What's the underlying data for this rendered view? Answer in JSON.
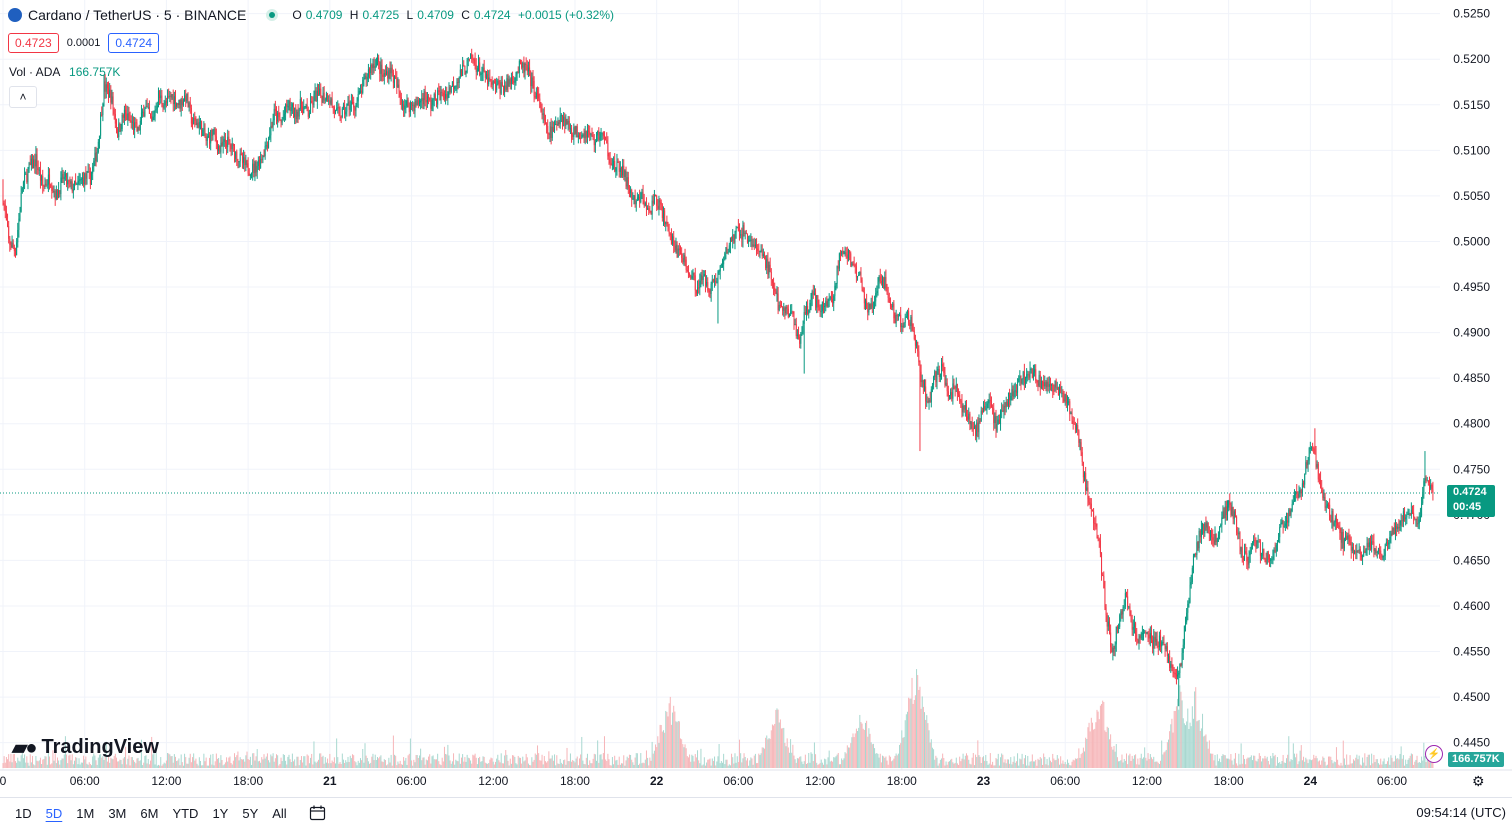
{
  "header": {
    "symbol": "Cardano / TetherUS · 5 · BINANCE",
    "open_label": "O",
    "open": "0.4709",
    "high_label": "H",
    "high": "0.4725",
    "low_label": "L",
    "low": "0.4709",
    "close_label": "C",
    "close": "0.4724",
    "change": "+0.0015 (+0.32%)"
  },
  "quote": {
    "sell": "0.4723",
    "spread": "0.0001",
    "buy": "0.4724"
  },
  "volume_legend": {
    "label": "Vol · ADA",
    "value": "166.757K"
  },
  "last_price": {
    "price": "0.4724",
    "countdown": "00:45"
  },
  "volume_badge": "166.757K",
  "branding": "TradingView",
  "ranges": [
    "1D",
    "5D",
    "1M",
    "3M",
    "6M",
    "YTD",
    "1Y",
    "5Y",
    "All"
  ],
  "active_range": "5D",
  "clock": "09:54:14 (UTC)",
  "colors": {
    "up": "#089981",
    "down": "#f23645",
    "vol_up": "#a8d8d0",
    "vol_down": "#f6b5b8",
    "grid": "#f0f3fa"
  },
  "chart_data": {
    "type": "candlestick",
    "title": "Cardano / TetherUS · 5 · BINANCE",
    "interval": "5m",
    "y_ticks": [
      "0.5250",
      "0.5200",
      "0.5150",
      "0.5100",
      "0.5050",
      "0.5000",
      "0.4950",
      "0.4900",
      "0.4850",
      "0.4800",
      "0.4750",
      "0.4700",
      "0.4650",
      "0.4600",
      "0.4550",
      "0.4500",
      "0.4450"
    ],
    "ylim": [
      0.442,
      0.5265
    ],
    "x_ticks": [
      "0",
      "06:00",
      "12:00",
      "18:00",
      "21",
      "06:00",
      "12:00",
      "18:00",
      "22",
      "06:00",
      "12:00",
      "18:00",
      "23",
      "06:00",
      "12:00",
      "18:00",
      "24",
      "06:00"
    ],
    "x_tick_hours": [
      0,
      6,
      12,
      18,
      24,
      30,
      36,
      42,
      48,
      54,
      60,
      66,
      72,
      78,
      84,
      90,
      96,
      102
    ],
    "xlim_hours": [
      0,
      105.3
    ],
    "price_path": [
      [
        0,
        0.506
      ],
      [
        0.5,
        0.5
      ],
      [
        1.0,
        0.499
      ],
      [
        1.5,
        0.506
      ],
      [
        2.0,
        0.508
      ],
      [
        2.5,
        0.509
      ],
      [
        3.0,
        0.506
      ],
      [
        3.5,
        0.507
      ],
      [
        4.0,
        0.505
      ],
      [
        4.5,
        0.507
      ],
      [
        5.0,
        0.506
      ],
      [
        5.5,
        0.506
      ],
      [
        6.0,
        0.507
      ],
      [
        6.5,
        0.507
      ],
      [
        7.0,
        0.51
      ],
      [
        7.5,
        0.517
      ],
      [
        8.0,
        0.516
      ],
      [
        8.5,
        0.512
      ],
      [
        9.0,
        0.514
      ],
      [
        9.5,
        0.513
      ],
      [
        10.0,
        0.512
      ],
      [
        10.5,
        0.515
      ],
      [
        11.0,
        0.513
      ],
      [
        11.5,
        0.516
      ],
      [
        12.0,
        0.515
      ],
      [
        12.5,
        0.516
      ],
      [
        13.0,
        0.515
      ],
      [
        13.5,
        0.516
      ],
      [
        14.0,
        0.513
      ],
      [
        14.5,
        0.513
      ],
      [
        15.0,
        0.511
      ],
      [
        15.5,
        0.512
      ],
      [
        16.0,
        0.51
      ],
      [
        16.5,
        0.511
      ],
      [
        17.0,
        0.51
      ],
      [
        17.5,
        0.509
      ],
      [
        18.0,
        0.508
      ],
      [
        18.5,
        0.508
      ],
      [
        19.0,
        0.509
      ],
      [
        19.5,
        0.511
      ],
      [
        20.0,
        0.514
      ],
      [
        20.5,
        0.513
      ],
      [
        21.0,
        0.515
      ],
      [
        21.5,
        0.514
      ],
      [
        22.0,
        0.515
      ],
      [
        22.5,
        0.514
      ],
      [
        23.0,
        0.516
      ],
      [
        23.5,
        0.516
      ],
      [
        24.0,
        0.516
      ],
      [
        24.5,
        0.514
      ],
      [
        25.0,
        0.514
      ],
      [
        25.5,
        0.515
      ],
      [
        26.0,
        0.515
      ],
      [
        26.5,
        0.517
      ],
      [
        27.0,
        0.519
      ],
      [
        27.5,
        0.52
      ],
      [
        28.0,
        0.518
      ],
      [
        28.5,
        0.519
      ],
      [
        29.0,
        0.517
      ],
      [
        29.5,
        0.515
      ],
      [
        30.0,
        0.515
      ],
      [
        30.5,
        0.515
      ],
      [
        31.0,
        0.516
      ],
      [
        31.5,
        0.515
      ],
      [
        32.0,
        0.516
      ],
      [
        32.5,
        0.516
      ],
      [
        33.0,
        0.517
      ],
      [
        33.5,
        0.518
      ],
      [
        34.0,
        0.519
      ],
      [
        34.5,
        0.52
      ],
      [
        35.0,
        0.519
      ],
      [
        35.5,
        0.518
      ],
      [
        36.0,
        0.517
      ],
      [
        36.5,
        0.517
      ],
      [
        37.0,
        0.517
      ],
      [
        37.5,
        0.518
      ],
      [
        38.0,
        0.519
      ],
      [
        38.5,
        0.519
      ],
      [
        39.0,
        0.517
      ],
      [
        39.5,
        0.515
      ],
      [
        40.0,
        0.512
      ],
      [
        40.5,
        0.512
      ],
      [
        41.0,
        0.514
      ],
      [
        41.5,
        0.513
      ],
      [
        42.0,
        0.512
      ],
      [
        42.5,
        0.512
      ],
      [
        43.0,
        0.512
      ],
      [
        43.5,
        0.511
      ],
      [
        44.0,
        0.512
      ],
      [
        44.5,
        0.51
      ],
      [
        45.0,
        0.508
      ],
      [
        45.5,
        0.508
      ],
      [
        46.0,
        0.506
      ],
      [
        46.5,
        0.504
      ],
      [
        47.0,
        0.505
      ],
      [
        47.5,
        0.503
      ],
      [
        48.0,
        0.505
      ],
      [
        48.5,
        0.503
      ],
      [
        49.0,
        0.501
      ],
      [
        49.5,
        0.499
      ],
      [
        50.0,
        0.498
      ],
      [
        50.5,
        0.497
      ],
      [
        51.0,
        0.495
      ],
      [
        51.5,
        0.496
      ],
      [
        52.0,
        0.495
      ],
      [
        52.5,
        0.496
      ],
      [
        53.0,
        0.498
      ],
      [
        53.5,
        0.5
      ],
      [
        54.0,
        0.501
      ],
      [
        54.5,
        0.501
      ],
      [
        55.0,
        0.5
      ],
      [
        55.5,
        0.499
      ],
      [
        56.0,
        0.498
      ],
      [
        56.5,
        0.496
      ],
      [
        57.0,
        0.493
      ],
      [
        57.5,
        0.492
      ],
      [
        58.0,
        0.493
      ],
      [
        58.5,
        0.489
      ],
      [
        59.0,
        0.492
      ],
      [
        59.5,
        0.494
      ],
      [
        60.0,
        0.493
      ],
      [
        60.5,
        0.493
      ],
      [
        61.0,
        0.494
      ],
      [
        61.5,
        0.498
      ],
      [
        62.0,
        0.499
      ],
      [
        62.5,
        0.497
      ],
      [
        63.0,
        0.496
      ],
      [
        63.5,
        0.493
      ],
      [
        64.0,
        0.493
      ],
      [
        64.5,
        0.496
      ],
      [
        65.0,
        0.495
      ],
      [
        65.5,
        0.492
      ],
      [
        66.0,
        0.491
      ],
      [
        66.5,
        0.492
      ],
      [
        67.0,
        0.49
      ],
      [
        67.5,
        0.485
      ],
      [
        68.0,
        0.482
      ],
      [
        68.5,
        0.485
      ],
      [
        69.0,
        0.486
      ],
      [
        69.5,
        0.483
      ],
      [
        70.0,
        0.484
      ],
      [
        70.5,
        0.482
      ],
      [
        71.0,
        0.481
      ],
      [
        71.5,
        0.479
      ],
      [
        72.0,
        0.481
      ],
      [
        72.5,
        0.482
      ],
      [
        73.0,
        0.48
      ],
      [
        73.5,
        0.481
      ],
      [
        74.0,
        0.483
      ],
      [
        74.5,
        0.484
      ],
      [
        75.0,
        0.485
      ],
      [
        75.5,
        0.486
      ],
      [
        76.0,
        0.485
      ],
      [
        76.5,
        0.484
      ],
      [
        77.0,
        0.484
      ],
      [
        77.5,
        0.484
      ],
      [
        78.0,
        0.483
      ],
      [
        78.5,
        0.481
      ],
      [
        79.0,
        0.479
      ],
      [
        79.5,
        0.474
      ],
      [
        80.0,
        0.47
      ],
      [
        80.5,
        0.468
      ],
      [
        81.0,
        0.46
      ],
      [
        81.5,
        0.455
      ],
      [
        82.0,
        0.458
      ],
      [
        82.5,
        0.461
      ],
      [
        83.0,
        0.458
      ],
      [
        83.5,
        0.456
      ],
      [
        84.0,
        0.457
      ],
      [
        84.5,
        0.456
      ],
      [
        85.0,
        0.456
      ],
      [
        85.5,
        0.455
      ],
      [
        86.0,
        0.452
      ],
      [
        86.5,
        0.453
      ],
      [
        87.0,
        0.459
      ],
      [
        87.5,
        0.465
      ],
      [
        88.0,
        0.468
      ],
      [
        88.5,
        0.469
      ],
      [
        89.0,
        0.467
      ],
      [
        89.5,
        0.469
      ],
      [
        90.0,
        0.471
      ],
      [
        90.5,
        0.47
      ],
      [
        91.0,
        0.466
      ],
      [
        91.5,
        0.465
      ],
      [
        92.0,
        0.467
      ],
      [
        92.5,
        0.466
      ],
      [
        93.0,
        0.465
      ],
      [
        93.5,
        0.466
      ],
      [
        94.0,
        0.469
      ],
      [
        94.5,
        0.47
      ],
      [
        95.0,
        0.472
      ],
      [
        95.5,
        0.473
      ],
      [
        96.0,
        0.477
      ],
      [
        96.5,
        0.476
      ],
      [
        97.0,
        0.472
      ],
      [
        97.5,
        0.47
      ],
      [
        98.0,
        0.469
      ],
      [
        98.5,
        0.467
      ],
      [
        99.0,
        0.467
      ],
      [
        99.5,
        0.466
      ],
      [
        100.0,
        0.466
      ],
      [
        100.5,
        0.467
      ],
      [
        101.0,
        0.466
      ],
      [
        101.5,
        0.466
      ],
      [
        102.0,
        0.468
      ],
      [
        102.5,
        0.469
      ],
      [
        103.0,
        0.47
      ],
      [
        103.5,
        0.47
      ],
      [
        104.0,
        0.469
      ],
      [
        104.5,
        0.474
      ],
      [
        105.0,
        0.4724
      ]
    ],
    "spikes": [
      {
        "hour": 1.0,
        "low": 0.4985
      },
      {
        "hour": 58.8,
        "low": 0.4855
      },
      {
        "hour": 52.5,
        "low": 0.491
      },
      {
        "hour": 67.3,
        "low": 0.477
      },
      {
        "hour": 86.3,
        "low": 0.449
      },
      {
        "hour": 96.3,
        "high": 0.4795
      },
      {
        "hour": 104.4,
        "high": 0.477
      },
      {
        "hour": 27.6,
        "high": 0.5205
      }
    ],
    "last_price": 0.4724,
    "volume": {
      "unit": "ADA",
      "last": "166.757K",
      "base_range": [
        0.15,
        1.0
      ],
      "peaks": [
        {
          "hour": 67.0,
          "value": 7.6
        },
        {
          "hour": 49.0,
          "value": 5.5
        },
        {
          "hour": 56.8,
          "value": 4.2
        },
        {
          "hour": 63.0,
          "value": 4.3
        },
        {
          "hour": 80.5,
          "value": 5.7
        },
        {
          "hour": 86.5,
          "value": 6.0
        },
        {
          "hour": 87.5,
          "value": 5.8
        }
      ]
    }
  }
}
